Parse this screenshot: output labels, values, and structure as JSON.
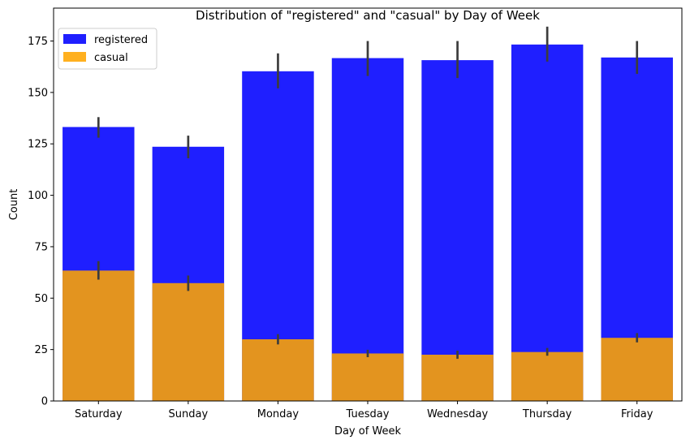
{
  "chart_data": {
    "type": "bar",
    "title": "Distribution of \"registered\" and \"casual\" by Day of Week",
    "xlabel": "Day of Week",
    "ylabel": "Count",
    "ylim": [
      0,
      191
    ],
    "yticks": [
      0,
      25,
      50,
      75,
      100,
      125,
      150,
      175
    ],
    "categories": [
      "Saturday",
      "Sunday",
      "Monday",
      "Tuesday",
      "Wednesday",
      "Thursday",
      "Friday"
    ],
    "series": [
      {
        "name": "registered",
        "color": "#0000ff",
        "values": [
          133.2,
          123.6,
          160.3,
          166.7,
          165.7,
          173.3,
          167.0
        ],
        "ci_low": [
          128,
          118,
          152,
          158,
          157,
          165,
          159
        ],
        "ci_high": [
          138,
          129,
          169,
          175,
          175,
          182,
          175
        ]
      },
      {
        "name": "casual",
        "color": "#ffa500",
        "values": [
          63.4,
          57.3,
          30.0,
          23.1,
          22.5,
          23.8,
          30.7
        ],
        "ci_low": [
          59,
          53.5,
          27.5,
          21.3,
          20.5,
          22,
          28.5
        ],
        "ci_high": [
          68,
          61,
          32.5,
          24.9,
          24.5,
          25.8,
          33
        ]
      }
    ],
    "legend_position": "top-left",
    "grid": false
  }
}
